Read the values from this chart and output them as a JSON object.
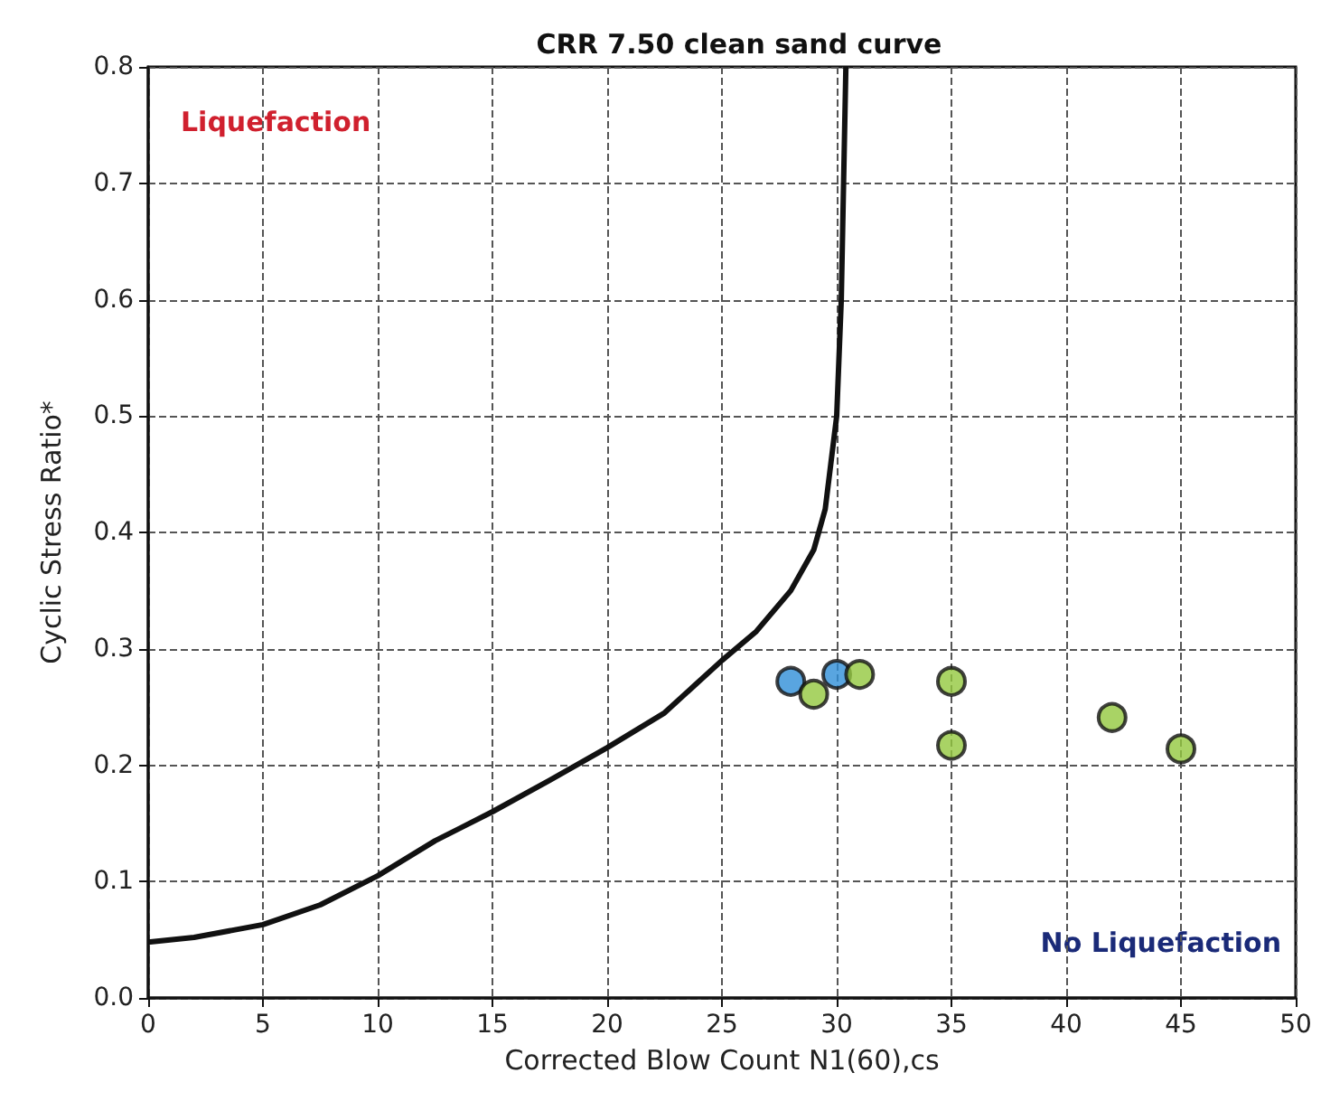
{
  "chart_data": {
    "type": "scatter",
    "title": "CRR 7.50 clean sand curve",
    "xlabel": "Corrected Blow Count N1(60),cs",
    "ylabel": "Cyclic Stress Ratio*",
    "annotations": [
      "Liquefaction",
      "No Liquefaction"
    ],
    "series": [
      {
        "type": "line",
        "color": "#111111",
        "marker": "none",
        "line_style": "solid",
        "x": [
          0,
          2,
          5,
          7.5,
          10,
          12.5,
          15,
          17.5,
          20,
          22.5,
          25,
          26.5,
          28,
          29,
          29.5,
          30,
          30.2,
          30.3,
          30.4
        ],
        "values": [
          0.048,
          0.052,
          0.063,
          0.08,
          0.105,
          0.135,
          0.16,
          0.187,
          0.215,
          0.245,
          0.29,
          0.315,
          0.35,
          0.385,
          0.42,
          0.5,
          0.6,
          0.7,
          0.8
        ]
      },
      {
        "color": "#2f8fd8",
        "marker": "circle",
        "x": [
          28,
          30
        ],
        "values": [
          0.272,
          0.278
        ]
      },
      {
        "color": "#93c83e",
        "marker": "circle",
        "x": [
          29,
          31,
          35,
          35,
          42,
          45
        ],
        "values": [
          0.261,
          0.278,
          0.272,
          0.217,
          0.241,
          0.214
        ]
      }
    ],
    "xlim": [
      0,
      50
    ],
    "xticks": [
      0,
      5,
      10,
      15,
      20,
      25,
      30,
      35,
      40,
      45,
      50
    ],
    "ylim": [
      0,
      0.8
    ],
    "yticks": [
      {
        "value": 0,
        "label": "0.0"
      },
      0.1,
      0.2,
      0.3,
      0.4,
      0.5,
      0.6,
      0.7,
      0.8
    ],
    "grid": true
  }
}
